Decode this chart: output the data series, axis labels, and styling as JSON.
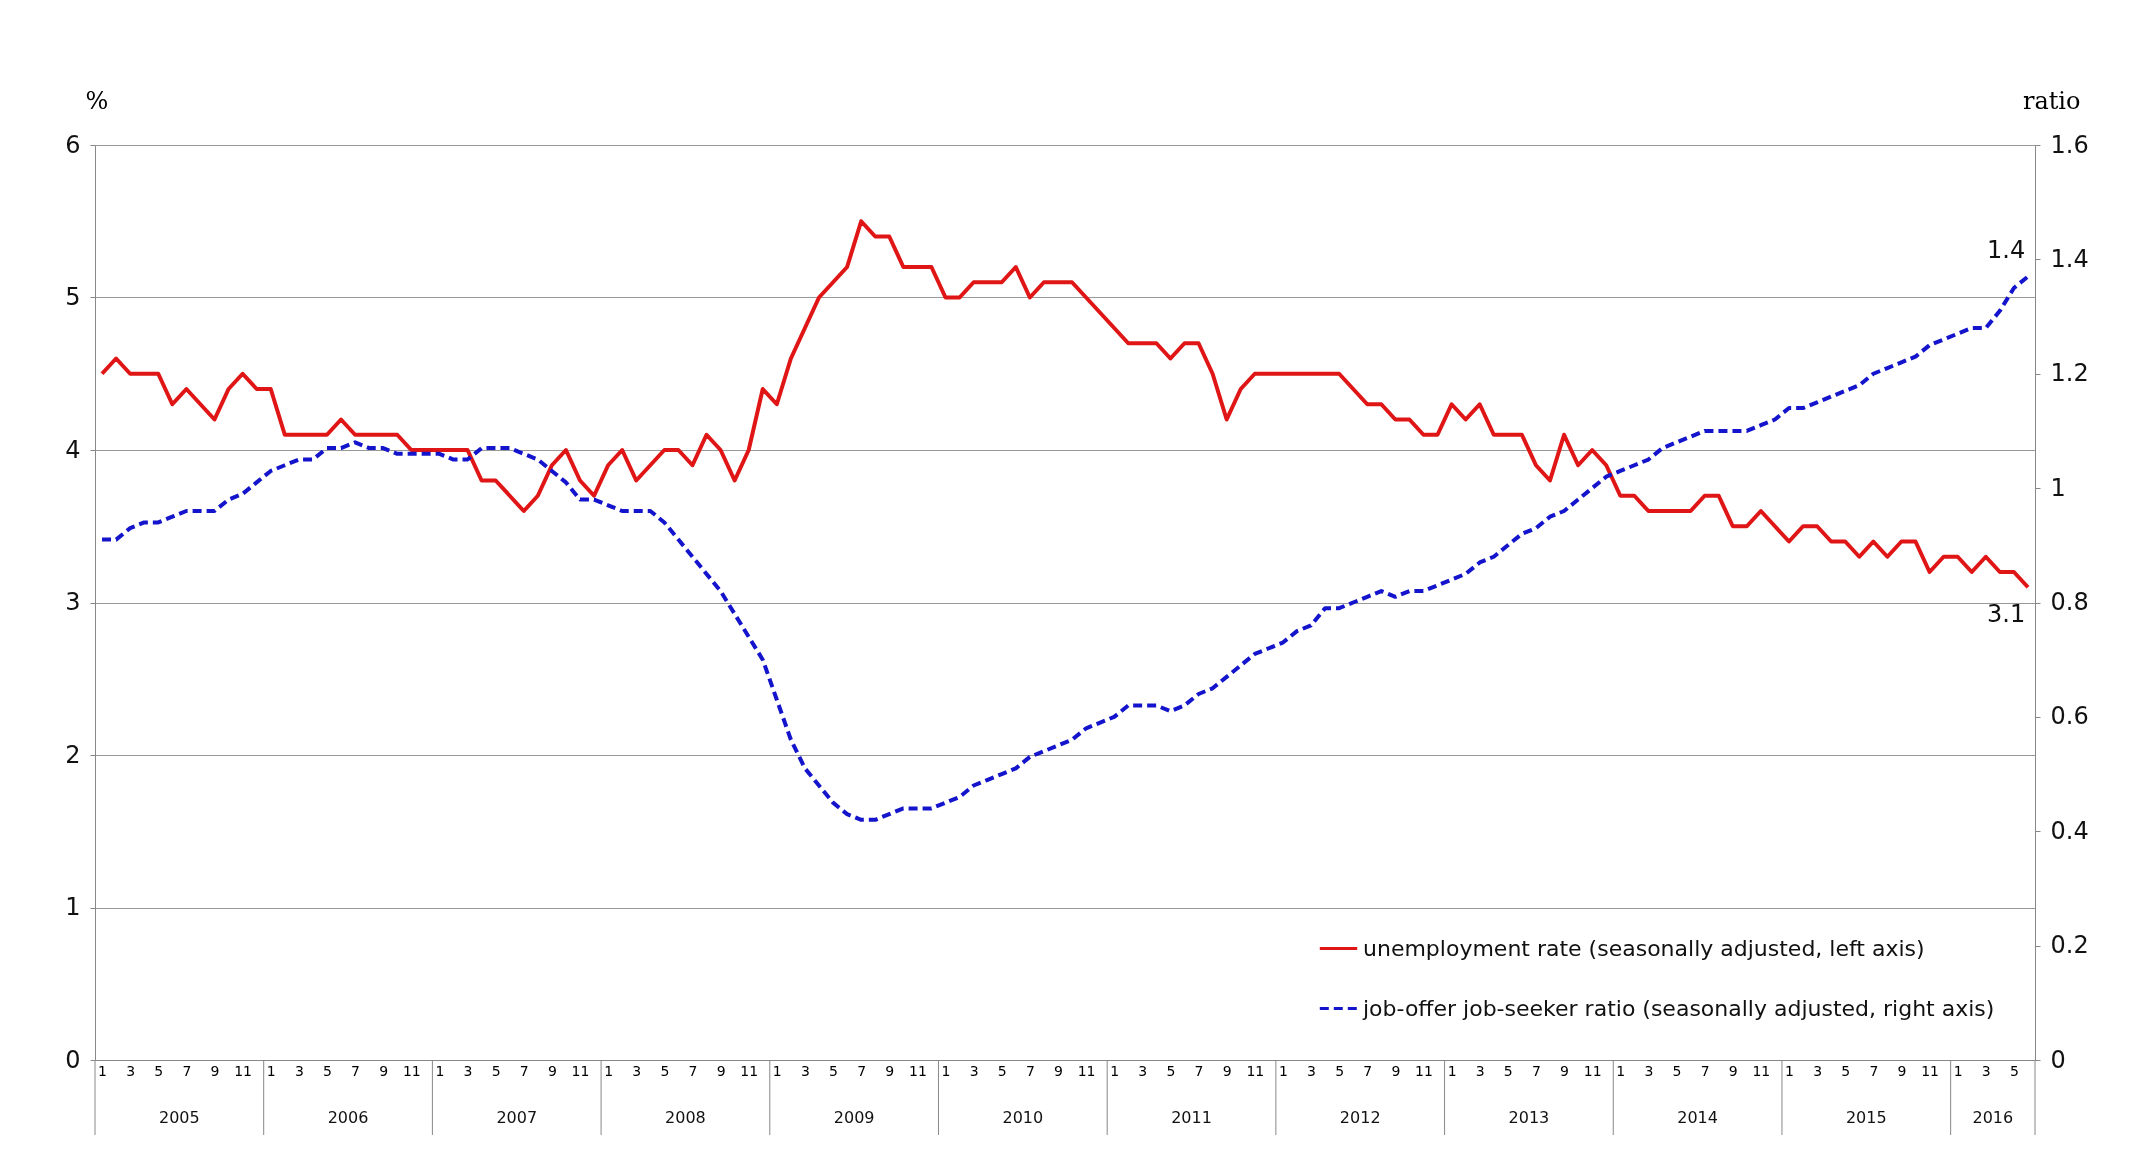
{
  "chart_data": {
    "type": "line",
    "ylabel": "%",
    "y2label": "ratio",
    "categories": [
      "1",
      null,
      "3",
      null,
      "5",
      null,
      "7",
      null,
      "9",
      null,
      "11",
      null,
      "1",
      null,
      "3",
      null,
      "5",
      null,
      "7",
      null,
      "9",
      null,
      "11",
      null,
      "1",
      null,
      "3",
      null,
      "5",
      null,
      "7",
      null,
      "9",
      null,
      "11",
      null,
      "1",
      null,
      "3",
      null,
      "5",
      null,
      "7",
      null,
      "9",
      null,
      "11",
      null,
      "1",
      null,
      "3",
      null,
      "5",
      null,
      "7",
      null,
      "9",
      null,
      "11",
      null,
      "1",
      null,
      "3",
      null,
      "5",
      null,
      "7",
      null,
      "9",
      null,
      "11",
      null,
      "1",
      null,
      "3",
      null,
      "5",
      null,
      "7",
      null,
      "9",
      null,
      "11",
      null,
      "1",
      null,
      "3",
      null,
      "5",
      null,
      "7",
      null,
      "9",
      null,
      "11",
      null,
      "1",
      null,
      "3",
      null,
      "5",
      null,
      "7",
      null,
      "9",
      null,
      "11",
      null,
      "1",
      null,
      "3",
      null,
      "5",
      null,
      "7",
      null,
      "9",
      null,
      "11",
      null,
      "1",
      null,
      "3",
      null,
      "5",
      null,
      "7",
      null,
      "9",
      null,
      "11",
      null,
      "1",
      null,
      "3",
      null,
      "5",
      null
    ],
    "series": [
      {
        "name": "unemployment rate (seasonally adjusted, left axis)",
        "color": "#e01515",
        "line_style": "solid",
        "values": [
          4.5,
          4.6,
          4.5,
          4.5,
          4.5,
          4.3,
          4.4,
          4.3,
          4.2,
          4.4,
          4.5,
          4.4,
          4.4,
          4.1,
          4.1,
          4.1,
          4.1,
          4.2,
          4.1,
          4.1,
          4.1,
          4.1,
          4.0,
          4.0,
          4.0,
          4.0,
          4.0,
          3.8,
          3.8,
          3.7,
          3.6,
          3.7,
          3.9,
          4.0,
          3.8,
          3.7,
          3.9,
          4.0,
          3.8,
          3.9,
          4.0,
          4.0,
          3.9,
          4.1,
          4.0,
          3.8,
          4.0,
          4.4,
          4.3,
          4.6,
          4.8,
          5.0,
          5.1,
          5.2,
          5.5,
          5.4,
          5.4,
          5.2,
          5.2,
          5.2,
          5.0,
          5.0,
          5.1,
          5.1,
          5.1,
          5.2,
          5.0,
          5.1,
          5.1,
          5.1,
          5.0,
          4.9,
          4.8,
          4.7,
          4.7,
          4.7,
          4.6,
          4.7,
          4.7,
          4.5,
          4.2,
          4.4,
          4.5,
          4.5,
          4.5,
          4.5,
          4.5,
          4.5,
          4.5,
          4.4,
          4.3,
          4.3,
          4.2,
          4.2,
          4.1,
          4.1,
          4.3,
          4.2,
          4.3,
          4.1,
          4.1,
          4.1,
          3.9,
          3.8,
          4.1,
          3.9,
          4.0,
          3.9,
          3.7,
          3.7,
          3.6,
          3.6,
          3.6,
          3.6,
          3.7,
          3.7,
          3.5,
          3.5,
          3.6,
          3.5,
          3.4,
          3.5,
          3.5,
          3.4,
          3.4,
          3.3,
          3.4,
          3.3,
          3.4,
          3.4,
          3.2,
          3.3,
          3.3,
          3.2,
          3.3,
          3.2,
          3.2,
          3.1
        ],
        "value_labels": [
          null,
          null,
          null,
          null,
          null,
          null,
          null,
          null,
          null,
          null,
          null,
          null,
          null,
          null,
          null,
          null,
          null,
          null,
          null,
          null,
          null,
          null,
          null,
          null,
          null,
          null,
          null,
          null,
          null,
          null,
          null,
          null,
          null,
          null,
          null,
          null,
          null,
          null,
          null,
          null,
          null,
          null,
          null,
          null,
          null,
          null,
          null,
          null,
          null,
          null,
          null,
          null,
          null,
          null,
          null,
          null,
          null,
          null,
          null,
          null,
          null,
          null,
          null,
          null,
          null,
          null,
          null,
          null,
          null,
          null,
          null,
          null,
          null,
          null,
          null,
          null,
          null,
          null,
          null,
          null,
          null,
          null,
          null,
          null,
          null,
          null,
          null,
          null,
          null,
          null,
          null,
          null,
          null,
          null,
          null,
          null,
          null,
          null,
          null,
          null,
          null,
          null,
          null,
          null,
          null,
          null,
          null,
          null,
          null,
          null,
          null,
          null,
          null,
          null,
          null,
          null,
          null,
          null,
          null,
          null,
          null,
          null,
          null,
          null,
          null,
          null,
          null,
          null,
          null,
          null,
          null,
          null,
          null,
          null,
          null,
          null,
          null,
          "3.1"
        ]
      },
      {
        "name": "job-offer job-seeker ratio (seasonally adjusted, right axis)",
        "color": "#1414cc",
        "line_style": "dashed",
        "axis": "y2",
        "values": [
          0.91,
          0.91,
          0.93,
          0.94,
          0.94,
          0.95,
          0.96,
          0.96,
          0.96,
          0.98,
          0.99,
          1.01,
          1.03,
          1.04,
          1.05,
          1.05,
          1.07,
          1.07,
          1.08,
          1.07,
          1.07,
          1.06,
          1.06,
          1.06,
          1.06,
          1.05,
          1.05,
          1.07,
          1.07,
          1.07,
          1.06,
          1.05,
          1.03,
          1.01,
          0.98,
          0.98,
          0.97,
          0.96,
          0.96,
          0.96,
          0.94,
          0.91,
          0.88,
          0.85,
          0.82,
          0.78,
          0.74,
          0.7,
          0.63,
          0.56,
          0.51,
          0.48,
          0.45,
          0.43,
          0.42,
          0.42,
          0.43,
          0.44,
          0.44,
          0.44,
          0.45,
          0.46,
          0.48,
          0.49,
          0.5,
          0.51,
          0.53,
          0.54,
          0.55,
          0.56,
          0.58,
          0.59,
          0.6,
          0.62,
          0.62,
          0.62,
          0.61,
          0.62,
          0.64,
          0.65,
          0.67,
          0.69,
          0.71,
          0.72,
          0.73,
          0.75,
          0.76,
          0.79,
          0.79,
          0.8,
          0.81,
          0.82,
          0.81,
          0.82,
          0.82,
          0.83,
          0.84,
          0.85,
          0.87,
          0.88,
          0.9,
          0.92,
          0.93,
          0.95,
          0.96,
          0.98,
          1.0,
          1.02,
          1.03,
          1.04,
          1.05,
          1.07,
          1.08,
          1.09,
          1.1,
          1.1,
          1.1,
          1.1,
          1.11,
          1.12,
          1.14,
          1.14,
          1.15,
          1.16,
          1.17,
          1.18,
          1.2,
          1.21,
          1.22,
          1.23,
          1.25,
          1.26,
          1.27,
          1.28,
          1.28,
          1.31,
          1.35,
          1.37
        ],
        "value_labels": [
          null,
          null,
          null,
          null,
          null,
          null,
          null,
          null,
          null,
          null,
          null,
          null,
          null,
          null,
          null,
          null,
          null,
          null,
          null,
          null,
          null,
          null,
          null,
          null,
          null,
          null,
          null,
          null,
          null,
          null,
          null,
          null,
          null,
          null,
          null,
          null,
          null,
          null,
          null,
          null,
          null,
          null,
          null,
          null,
          null,
          null,
          null,
          null,
          null,
          null,
          null,
          null,
          null,
          null,
          null,
          null,
          null,
          null,
          null,
          null,
          null,
          null,
          null,
          null,
          null,
          null,
          null,
          null,
          null,
          null,
          null,
          null,
          null,
          null,
          null,
          null,
          null,
          null,
          null,
          null,
          null,
          null,
          null,
          null,
          null,
          null,
          null,
          null,
          null,
          null,
          null,
          null,
          null,
          null,
          null,
          null,
          null,
          null,
          null,
          null,
          null,
          null,
          null,
          null,
          null,
          null,
          null,
          null,
          null,
          null,
          null,
          null,
          null,
          null,
          null,
          null,
          null,
          null,
          null,
          null,
          null,
          null,
          null,
          null,
          null,
          null,
          null,
          null,
          null,
          null,
          null,
          null,
          null,
          null,
          null,
          null,
          null,
          "1.4"
        ]
      }
    ],
    "ylim": [
      0,
      6
    ],
    "yticks": [
      0,
      1,
      2,
      3,
      4,
      5,
      6
    ],
    "y2lim": [
      0,
      1.6
    ],
    "y2ticks": [
      0,
      0.2,
      0.4,
      0.6,
      0.8,
      1,
      1.2,
      1.4,
      1.6
    ],
    "grid": "y",
    "legend": "bottom right",
    "annotations": [
      "2005",
      "2006",
      "2007",
      "2008",
      "2009",
      "2010",
      "2011",
      "2012",
      "2013",
      "2014",
      "2015",
      "2016"
    ]
  }
}
